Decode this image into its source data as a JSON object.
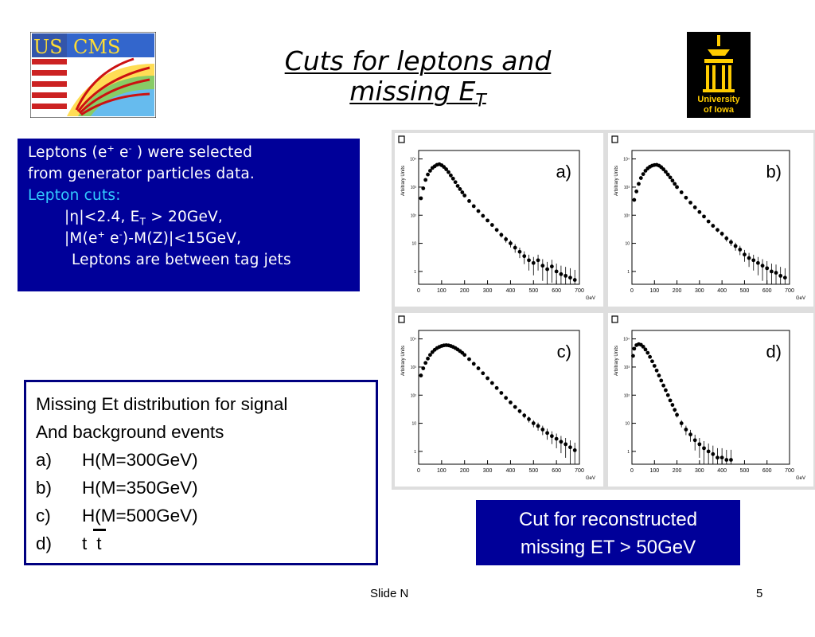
{
  "header": {
    "title_line1": "Cuts for leptons and",
    "title_line2": "missing E",
    "title_sub": "T"
  },
  "logos": {
    "left": {
      "name": "US CMS",
      "text_us": "US",
      "text_cms": "CMS"
    },
    "right": {
      "name": "University of Iowa",
      "line1": "University",
      "line2": "of Iowa"
    }
  },
  "lepton_box": {
    "line1_a": "Leptons (e",
    "line1_b": "+",
    "line1_c": " e",
    "line1_d": "-",
    "line1_e": " ) were selected",
    "line2": "from generator particles data.",
    "line3": "Lepton cuts:",
    "cut1_a": "|η|<2.4, E",
    "cut1_b": "T",
    "cut1_c": " > 20GeV,",
    "cut2_a": "|M(e",
    "cut2_b": "+",
    "cut2_c": " e",
    "cut2_d": "-",
    "cut2_e": ")-M(Z)|<15GeV,",
    "cut3": "Leptons are between tag jets"
  },
  "list_box": {
    "line1": "Missing Et distribution for signal",
    "line2": "And background events",
    "items": [
      {
        "label": "a)",
        "text": "H(M=300GeV)"
      },
      {
        "label": "b)",
        "text": "H(M=350GeV)"
      },
      {
        "label": "c)",
        "text": "H(M=500GeV)"
      },
      {
        "label": "d)",
        "text": "t",
        "text2": "t"
      }
    ]
  },
  "cut_box": {
    "line1": "Cut for  reconstructed",
    "line2": "missing ET > 50GeV"
  },
  "footer": {
    "slide": "Slide N",
    "page": "5"
  },
  "chart_data": [
    {
      "type": "scatter",
      "panel_label": "a)",
      "ylabel": "Arbitrary Units",
      "xlabel": "GeV",
      "xlim": [
        0,
        700
      ],
      "ylog": true,
      "x_ticks": [
        "0",
        "100",
        "200",
        "300",
        "400",
        "500",
        "600",
        "700"
      ],
      "y_ticks": [
        "1",
        "10",
        "10²",
        "10³",
        "10⁴"
      ],
      "x": [
        10,
        20,
        30,
        40,
        50,
        60,
        70,
        80,
        90,
        100,
        110,
        120,
        130,
        140,
        150,
        160,
        170,
        180,
        190,
        200,
        220,
        240,
        260,
        280,
        300,
        320,
        340,
        360,
        380,
        400,
        420,
        440,
        460,
        480,
        500,
        520,
        540,
        560,
        580,
        600,
        620,
        640,
        660,
        680
      ],
      "y": [
        400,
        900,
        1800,
        2800,
        3800,
        4800,
        5500,
        6200,
        6500,
        6000,
        5200,
        4300,
        3400,
        2600,
        2000,
        1500,
        1100,
        850,
        650,
        500,
        320,
        210,
        140,
        95,
        65,
        45,
        30,
        20,
        14,
        10,
        7,
        5,
        3.5,
        2.5,
        2,
        2.5,
        1.6,
        1.2,
        1.5,
        1,
        0.8,
        0.7,
        0.6,
        0.5
      ]
    },
    {
      "type": "scatter",
      "panel_label": "b)",
      "ylabel": "Arbitrary Units",
      "xlabel": "GeV",
      "xlim": [
        0,
        700
      ],
      "ylog": true,
      "x_ticks": [
        "0",
        "100",
        "200",
        "300",
        "400",
        "500",
        "600",
        "700"
      ],
      "y_ticks": [
        "1",
        "10",
        "10²",
        "10³",
        "10⁴"
      ],
      "x": [
        10,
        20,
        30,
        40,
        50,
        60,
        70,
        80,
        90,
        100,
        110,
        120,
        130,
        140,
        150,
        160,
        170,
        180,
        190,
        200,
        220,
        240,
        260,
        280,
        300,
        320,
        340,
        360,
        380,
        400,
        420,
        440,
        460,
        480,
        500,
        520,
        540,
        560,
        580,
        600,
        620,
        640,
        660,
        680
      ],
      "y": [
        350,
        700,
        1300,
        2100,
        2900,
        3800,
        4600,
        5300,
        5800,
        6100,
        6200,
        5800,
        5100,
        4300,
        3500,
        2800,
        2200,
        1700,
        1300,
        1000,
        650,
        420,
        280,
        190,
        130,
        90,
        60,
        42,
        30,
        22,
        15,
        11,
        8,
        6,
        4,
        3,
        2.5,
        2,
        1.6,
        1.3,
        1,
        0.9,
        0.7,
        0.6
      ]
    },
    {
      "type": "scatter",
      "panel_label": "c)",
      "ylabel": "Arbitrary Units",
      "xlabel": "GeV",
      "xlim": [
        0,
        700
      ],
      "ylog": true,
      "x_ticks": [
        "0",
        "100",
        "200",
        "300",
        "400",
        "500",
        "600",
        "700"
      ],
      "y_ticks": [
        "1",
        "10",
        "10²",
        "10³",
        "10⁴"
      ],
      "x": [
        10,
        20,
        30,
        40,
        50,
        60,
        70,
        80,
        90,
        100,
        110,
        120,
        130,
        140,
        150,
        160,
        170,
        180,
        190,
        200,
        220,
        240,
        260,
        280,
        300,
        320,
        340,
        360,
        380,
        400,
        420,
        440,
        460,
        480,
        500,
        520,
        540,
        560,
        580,
        600,
        620,
        640,
        660,
        680
      ],
      "y": [
        500,
        900,
        1400,
        2000,
        2700,
        3400,
        4100,
        4700,
        5200,
        5600,
        5900,
        6000,
        5900,
        5600,
        5200,
        4700,
        4200,
        3700,
        3200,
        2700,
        1900,
        1300,
        900,
        600,
        400,
        270,
        180,
        120,
        80,
        55,
        38,
        27,
        19,
        14,
        10,
        8,
        6,
        4.5,
        3.5,
        2.8,
        2.2,
        1.8,
        1.4,
        1.1
      ]
    },
    {
      "type": "scatter",
      "panel_label": "d)",
      "ylabel": "Arbitrary Units",
      "xlabel": "GeV",
      "xlim": [
        0,
        700
      ],
      "ylog": true,
      "x_ticks": [
        "0",
        "100",
        "200",
        "300",
        "400",
        "500",
        "600",
        "700"
      ],
      "y_ticks": [
        "1",
        "10",
        "10²",
        "10³",
        "10⁴"
      ],
      "x": [
        5,
        10,
        20,
        30,
        40,
        50,
        60,
        70,
        80,
        90,
        100,
        110,
        120,
        130,
        140,
        150,
        160,
        170,
        180,
        190,
        200,
        220,
        240,
        260,
        280,
        300,
        320,
        340,
        360,
        380,
        400,
        420,
        440
      ],
      "y": [
        2500,
        4500,
        6000,
        6500,
        6200,
        5300,
        4200,
        3200,
        2300,
        1600,
        1100,
        750,
        500,
        330,
        220,
        150,
        100,
        65,
        45,
        30,
        20,
        10,
        6,
        4,
        2.5,
        1.8,
        1.3,
        1,
        0.8,
        0.6,
        0.6,
        0.5,
        0.5
      ]
    }
  ]
}
